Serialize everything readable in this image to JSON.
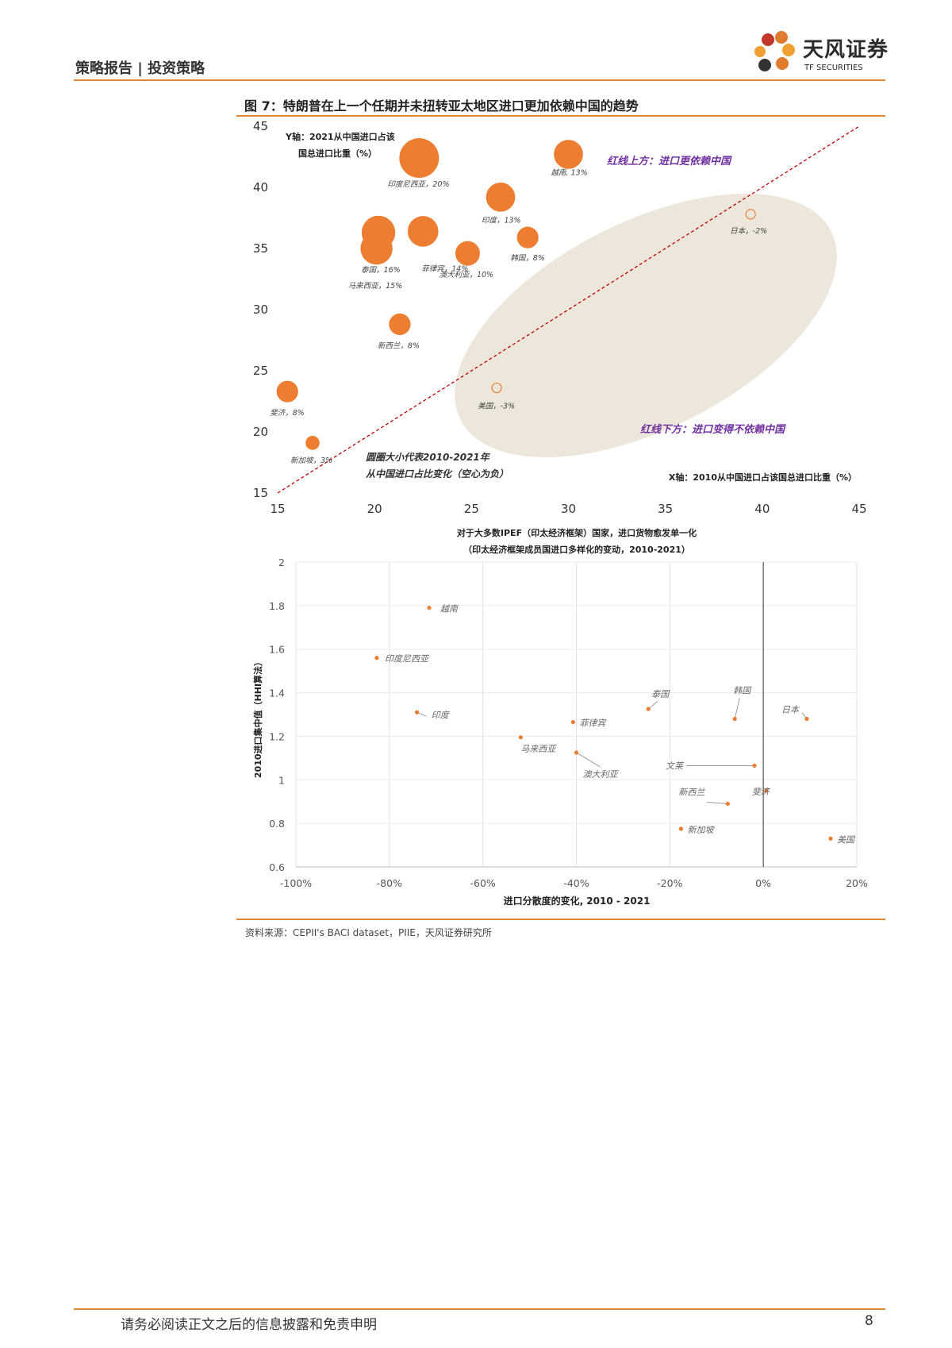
{
  "header": {
    "title": "策略报告 | 投资策略"
  },
  "logo": {
    "cn": "天风证券",
    "en": "TF SECURITIES"
  },
  "figure": {
    "title": "图 7：特朗普在上一个任期并未扭转亚太地区进口更加依赖中国的趋势"
  },
  "chart_data": [
    {
      "type": "scatter",
      "xlim": [
        15,
        45
      ],
      "ylim": [
        15,
        45
      ],
      "xticks": [
        15,
        20,
        25,
        30,
        35,
        40,
        45
      ],
      "yticks": [
        15,
        20,
        25,
        30,
        35,
        40,
        45
      ],
      "ylabel_line1": "Y轴：2021从中国进口占该",
      "ylabel_line2": "国总进口比重（%）",
      "xlabel": "X轴：2010从中国进口占该国总进口比重（%）",
      "above_label": "红线上方：进口更依赖中国",
      "below_label": "红线下方：进口变得不依赖中国",
      "size_note_line1": "圆圈大小代表2010-2021年",
      "size_note_line2": "从中国进口占比变化（空心为负）",
      "points": [
        {
          "label": "印度尼西亚，20%",
          "x": 22.3,
          "y": 42.4,
          "change": 20
        },
        {
          "label": "越南, 13%",
          "x": 30.0,
          "y": 42.7,
          "change": 13
        },
        {
          "label": "印度，13%",
          "x": 26.5,
          "y": 39.2,
          "change": 13
        },
        {
          "label": "泰国，16%",
          "x": 20.2,
          "y": 36.3,
          "change": 16
        },
        {
          "label": "菲律宾，14%",
          "x": 22.5,
          "y": 36.4,
          "change": 14
        },
        {
          "label": "马来西亚，15%",
          "x": 20.1,
          "y": 35.0,
          "change": 15
        },
        {
          "label": "澳大利亚，10%",
          "x": 24.8,
          "y": 34.6,
          "change": 10
        },
        {
          "label": "韩国，8%",
          "x": 27.9,
          "y": 35.9,
          "change": 8
        },
        {
          "label": "新西兰，8%",
          "x": 21.3,
          "y": 28.8,
          "change": 8
        },
        {
          "label": "斐济，8%",
          "x": 15.5,
          "y": 23.3,
          "change": 8
        },
        {
          "label": "新加坡，3%",
          "x": 16.8,
          "y": 19.1,
          "change": 3
        },
        {
          "label": "日本，-2%",
          "x": 39.4,
          "y": 37.8,
          "change": -2
        },
        {
          "label": "美国，-3%",
          "x": 26.3,
          "y": 23.6,
          "change": -3
        }
      ]
    },
    {
      "type": "scatter",
      "title_line1": "对于大多数IPEF（印太经济框架）国家，进口货物愈发单一化",
      "title_line2": "（印太经济框架成员国进口多样化的变动，2010-2021）",
      "xlabel": "进口分散度的变化, 2010 - 2021",
      "ylabel": "2010进口集中值（HHI算法）",
      "xlim": [
        -100,
        20
      ],
      "ylim": [
        0.6,
        2
      ],
      "xticks": [
        "-100%",
        "-80%",
        "-60%",
        "-40%",
        "-20%",
        "0%",
        "20%"
      ],
      "yticks": [
        "0.6",
        "0.8",
        "1",
        "1.2",
        "1.4",
        "1.6",
        "1.8",
        "2"
      ],
      "points": [
        {
          "label": "越南",
          "x": -71.5,
          "y": 1.79
        },
        {
          "label": "印度尼西亚",
          "x": -82.7,
          "y": 1.56
        },
        {
          "label": "印度",
          "x": -74.1,
          "y": 1.31
        },
        {
          "label": "马来西亚",
          "x": -51.9,
          "y": 1.195
        },
        {
          "label": "菲律宾",
          "x": -40.7,
          "y": 1.265
        },
        {
          "label": "澳大利亚",
          "x": -40.0,
          "y": 1.125
        },
        {
          "label": "泰国",
          "x": -24.6,
          "y": 1.325
        },
        {
          "label": "韩国",
          "x": -6.1,
          "y": 1.28
        },
        {
          "label": "日本",
          "x": 9.3,
          "y": 1.28
        },
        {
          "label": "文莱",
          "x": -1.9,
          "y": 1.065
        },
        {
          "label": "斐济",
          "x": 0.6,
          "y": 0.95
        },
        {
          "label": "新西兰",
          "x": -7.6,
          "y": 0.89
        },
        {
          "label": "新加坡",
          "x": -17.6,
          "y": 0.775
        },
        {
          "label": "美国",
          "x": 14.4,
          "y": 0.73
        }
      ]
    }
  ],
  "source": "资料来源：CEPII's BACI dataset，PIIE，天风证券研究所",
  "footer": {
    "text": "请务必阅读正文之后的信息披露和免责申明",
    "page": "8"
  },
  "colors": {
    "accent": "#e0883a",
    "bubble": "#ed7d31",
    "ellipse": "#ece7da",
    "redline": "#c00000",
    "purple": "#7030a0"
  }
}
